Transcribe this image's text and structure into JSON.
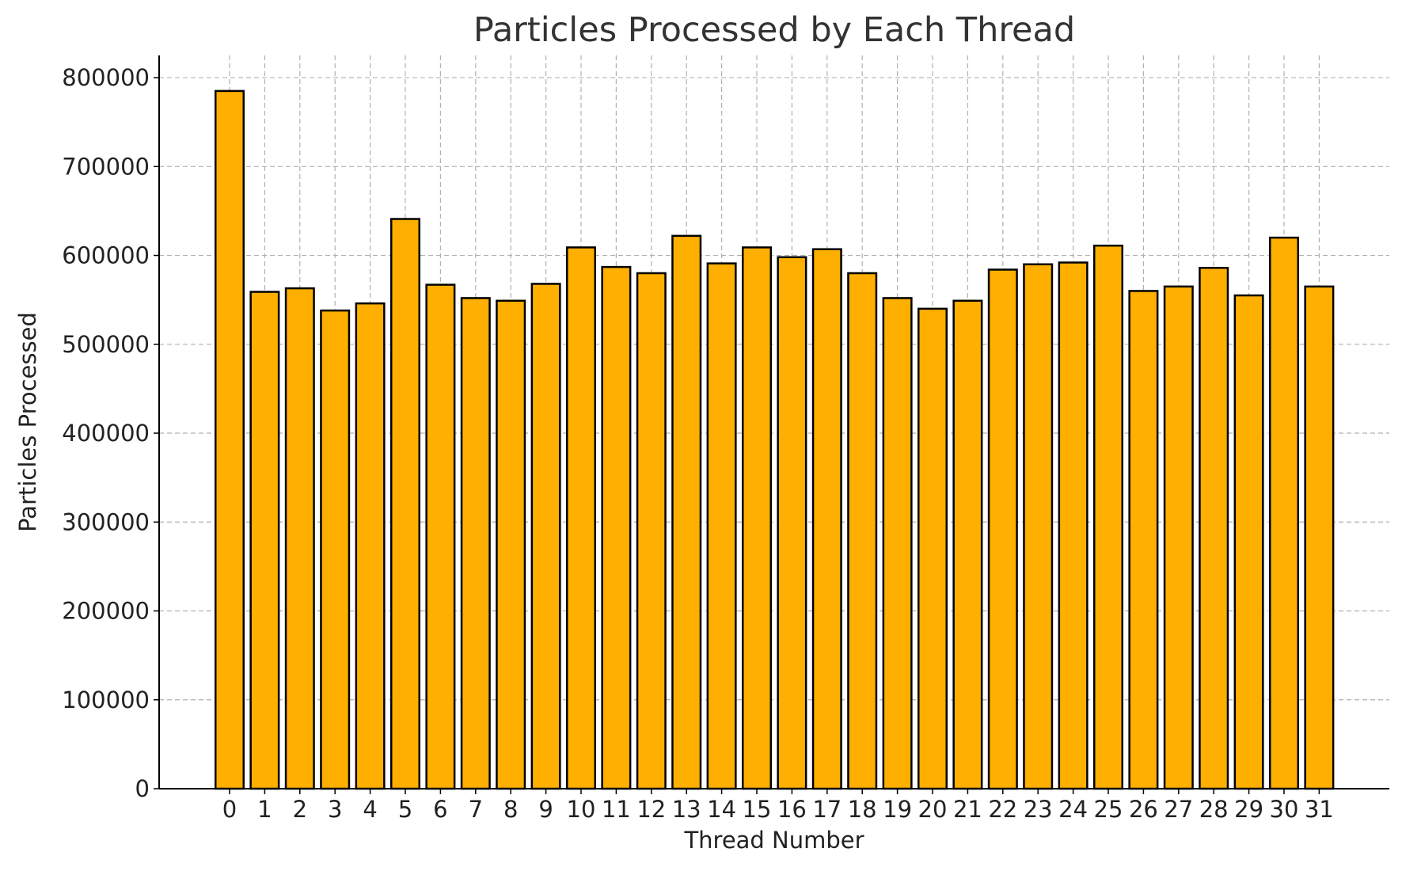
{
  "chart_data": {
    "type": "bar",
    "title": "Particles Processed by Each Thread",
    "xlabel": "Thread Number",
    "ylabel": "Particles Processed",
    "categories": [
      "0",
      "1",
      "2",
      "3",
      "4",
      "5",
      "6",
      "7",
      "8",
      "9",
      "10",
      "11",
      "12",
      "13",
      "14",
      "15",
      "16",
      "17",
      "18",
      "19",
      "20",
      "21",
      "22",
      "23",
      "24",
      "25",
      "26",
      "27",
      "28",
      "29",
      "30",
      "31"
    ],
    "values": [
      785000,
      559000,
      563000,
      538000,
      546000,
      641000,
      567000,
      552000,
      549000,
      568000,
      609000,
      587000,
      580000,
      622000,
      591000,
      609000,
      598000,
      607000,
      580000,
      552000,
      540000,
      549000,
      584000,
      590000,
      592000,
      611000,
      560000,
      565000,
      586000,
      555000,
      620000,
      565000
    ],
    "ylim": [
      0,
      825000
    ],
    "yticks": [
      0,
      100000,
      200000,
      300000,
      400000,
      500000,
      600000,
      700000,
      800000
    ],
    "grid": true,
    "bar_color": "#FFAF00",
    "edge_color": "#000000"
  }
}
